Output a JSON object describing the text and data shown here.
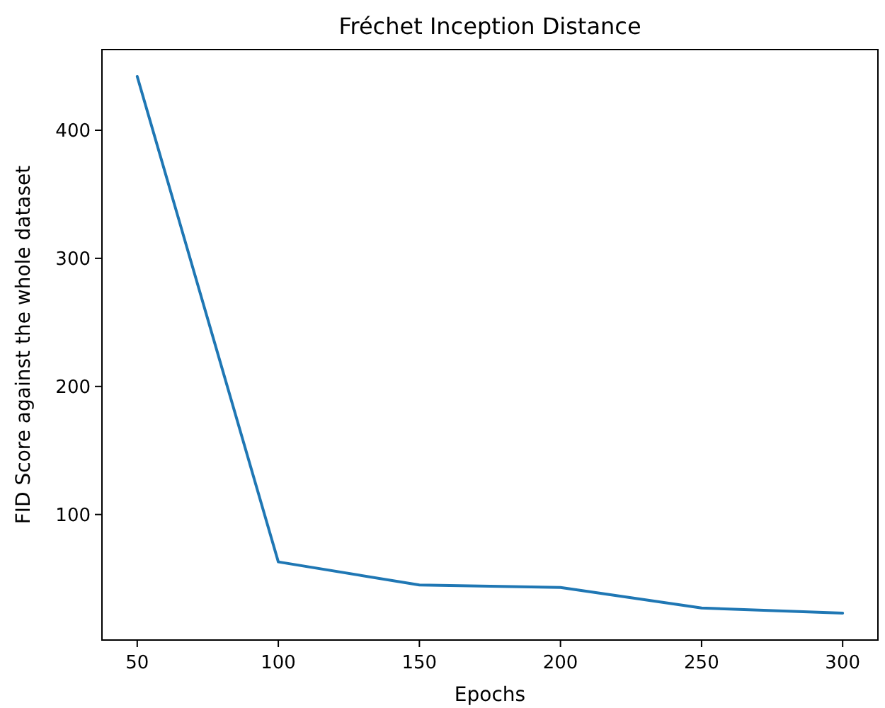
{
  "chart_data": {
    "type": "line",
    "title": "Fréchet Inception Distance",
    "xlabel": "Epochs",
    "ylabel": "FID Score against the whole dataset",
    "x": [
      50,
      100,
      150,
      200,
      250,
      300
    ],
    "series": [
      {
        "color": "#1f77b4",
        "values": [
          442,
          63,
          45,
          43,
          27,
          23
        ]
      }
    ],
    "xlim": [
      37.5,
      312.5
    ],
    "xticks": [
      50,
      100,
      150,
      200,
      250,
      300
    ],
    "ylim": [
      2,
      463
    ],
    "yticks": [
      100,
      200,
      300,
      400
    ],
    "grid": false,
    "marker": "none",
    "line_style": "solid"
  }
}
